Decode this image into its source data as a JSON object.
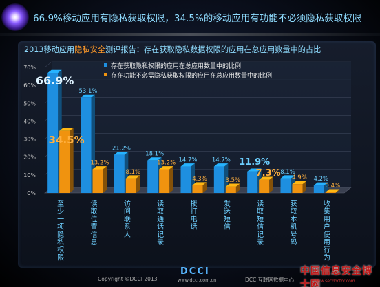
{
  "headline": "66.9%移动应用有隐私获取权限，34.5%的移动应用有功能不必须隐私获取权限",
  "colors": {
    "blue": "#1e8fe0",
    "orange": "#f0930f",
    "accent_text": "#8fdcff",
    "highlight_text": "#ff9a2a"
  },
  "chart_data": {
    "type": "bar",
    "title_before": "2013移动应用",
    "title_highlight": "隐私安全",
    "title_after": "测评报告：存在获取隐私数据权限的应用在总应用数量中的占比",
    "categories": [
      "至少一项隐私权限",
      "读取位置信息",
      "访问联系人",
      "读取通话记录",
      "拨打电话",
      "发送短信",
      "读取短信记录",
      "获取本机号码",
      "收集用户使用行为"
    ],
    "series": [
      {
        "name": "存在获取隐私权限的应用在总应用数量中的比例",
        "color": "#1e8fe0",
        "values": [
          66.9,
          53.1,
          21.2,
          18.1,
          14.7,
          14.7,
          11.9,
          8.1,
          4.2
        ],
        "labels": [
          "66.9%",
          "53.1%",
          "21.2%",
          "18.1%",
          "14.7%",
          "14.7%",
          "11.9%",
          "8.1%",
          "4.2%"
        ]
      },
      {
        "name": "存在功能不必需隐私获取权限的应用在总应用数量中的比例",
        "color": "#f0930f",
        "values": [
          34.5,
          13.2,
          8.1,
          13.2,
          4.3,
          3.5,
          7.3,
          4.9,
          0.4
        ],
        "labels": [
          "34.5%",
          "13.2%",
          "8.1%",
          "13.2%",
          "4.3%",
          "3.5%",
          "7.3%",
          "4.9%",
          "0.4%"
        ]
      }
    ],
    "y_ticks": [
      "0%",
      "10%",
      "20%",
      "30%",
      "40%",
      "50%",
      "60%",
      "70%"
    ],
    "ylim": [
      0,
      70
    ],
    "legend_position": "top-left"
  },
  "footer": {
    "copyright": "Copyright ©DCCI 2013",
    "logo": "DCCI",
    "site": "www.dcci.com.cn",
    "center": "DCCI互联网数据中心",
    "watermark": "中国信息安全博士网",
    "watermark_url": "www.secdoctor.com"
  }
}
